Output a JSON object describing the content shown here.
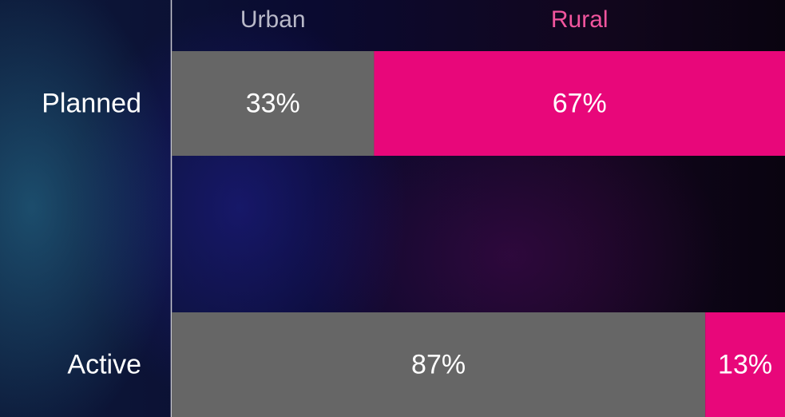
{
  "chart_data": {
    "type": "stacked_barh",
    "categories": [
      "Planned",
      "Active"
    ],
    "series": [
      {
        "name": "Urban",
        "color": "#666666",
        "values": [
          33,
          87
        ],
        "value_labels": [
          "33%",
          "87%"
        ]
      },
      {
        "name": "Rural",
        "color": "#e8077a",
        "values": [
          67,
          13
        ],
        "value_labels": [
          "67%",
          "13%"
        ]
      }
    ],
    "xlim": [
      0,
      100
    ]
  }
}
